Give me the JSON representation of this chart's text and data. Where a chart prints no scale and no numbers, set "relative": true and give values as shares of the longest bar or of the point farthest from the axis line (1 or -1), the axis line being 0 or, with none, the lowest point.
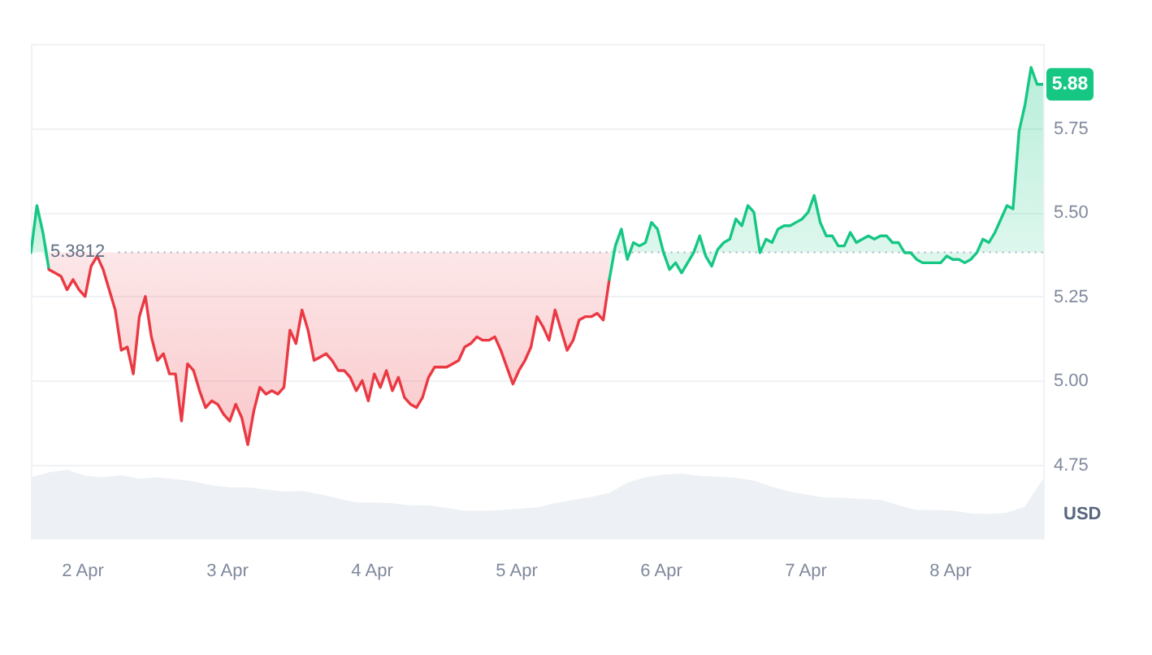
{
  "chart_data": [
    {
      "type": "line",
      "ylabel": "USD",
      "xlim": [
        "--04-01T15:30",
        "--04-08T15:30"
      ],
      "ylim": [
        4.75,
        6
      ],
      "yticks": [
        4.75,
        {
          "value": 5,
          "label": "5.00"
        },
        5.25,
        {
          "value": 5.5,
          "label": "5.50"
        },
        5.75
      ],
      "tick_labels": "y",
      "grid": "y",
      "ref_lines": [
        {
          "axis": "y",
          "value": 5.3812,
          "label": "5.3812",
          "color": "#a6b0c3",
          "line_style": "dotted"
        }
      ],
      "annotations": [
        {
          "text": "5.88",
          "x": "--04-08T15:30",
          "y": 5.88
        }
      ],
      "series": [
        {
          "color": "#16c784",
          "x": [
            "--04-01T15:30",
            "--04-01T16:30",
            "--04-01T17:30",
            "--04-01T18:30"
          ],
          "values": [
            5.38,
            5.52,
            5.44,
            5.33
          ],
          "lower": [
            5.38,
            5.3812,
            5.3812,
            5.33
          ],
          "upper": [
            5.3812,
            5.52,
            5.44,
            5.3812
          ]
        },
        {
          "color": "#ea3943",
          "x": [
            "--04-01T18:30",
            "--04-01T19:30",
            "--04-01T20:30",
            "--04-01T21:30",
            "--04-01T22:30",
            "--04-01T23:30",
            "--04-02T00:30",
            "--04-02T01:30",
            "--04-02T02:30",
            "--04-02T03:30",
            "--04-02T04:30",
            "--04-02T05:30",
            "--04-02T06:30",
            "--04-02T07:30",
            "--04-02T08:30",
            "--04-02T09:30",
            "--04-02T10:30",
            "--04-02T11:30",
            "--04-02T12:30",
            "--04-02T13:30",
            "--04-02T14:30",
            "--04-02T15:30",
            "--04-02T16:30",
            "--04-02T17:30",
            "--04-02T18:30",
            "--04-02T19:30",
            "--04-02T20:30",
            "--04-02T21:30",
            "--04-02T22:30",
            "--04-02T23:30",
            "--04-03T00:30",
            "--04-03T01:30",
            "--04-03T02:30",
            "--04-03T03:30",
            "--04-03T04:30",
            "--04-03T05:30",
            "--04-03T06:30",
            "--04-03T07:30",
            "--04-03T08:30",
            "--04-03T09:30",
            "--04-03T10:30",
            "--04-03T11:30",
            "--04-03T12:30",
            "--04-03T13:30",
            "--04-03T14:30",
            "--04-03T15:30",
            "--04-03T16:30",
            "--04-03T17:30",
            "--04-03T18:30",
            "--04-03T19:30",
            "--04-03T20:30",
            "--04-03T21:30",
            "--04-03T22:30",
            "--04-03T23:30",
            "--04-04T00:30",
            "--04-04T01:30",
            "--04-04T02:30",
            "--04-04T03:30",
            "--04-04T04:30",
            "--04-04T05:30",
            "--04-04T06:30",
            "--04-04T07:30",
            "--04-04T08:30",
            "--04-04T09:30",
            "--04-04T10:30",
            "--04-04T11:30",
            "--04-04T12:30",
            "--04-04T13:30",
            "--04-04T14:30",
            "--04-04T15:30",
            "--04-04T16:30",
            "--04-04T17:30",
            "--04-04T18:30",
            "--04-04T19:30",
            "--04-04T20:30",
            "--04-04T21:30",
            "--04-04T22:30",
            "--04-04T23:30",
            "--04-05T00:30",
            "--04-05T01:30",
            "--04-05T02:30",
            "--04-05T03:30",
            "--04-05T04:30",
            "--04-05T05:30",
            "--04-05T06:30",
            "--04-05T07:30",
            "--04-05T08:30",
            "--04-05T09:30",
            "--04-05T10:30",
            "--04-05T11:30",
            "--04-05T12:30",
            "--04-05T13:30",
            "--04-05T14:30",
            "--04-05T15:30"
          ],
          "values": [
            5.33,
            5.32,
            5.31,
            5.27,
            5.3,
            5.27,
            5.25,
            5.34,
            5.37,
            5.33,
            5.27,
            5.21,
            5.09,
            5.1,
            5.02,
            5.19,
            5.25,
            5.13,
            5.06,
            5.08,
            5.02,
            5.02,
            4.88,
            5.05,
            5.03,
            4.97,
            4.92,
            4.94,
            4.93,
            4.9,
            4.88,
            4.93,
            4.89,
            4.81,
            4.91,
            4.98,
            4.96,
            4.97,
            4.96,
            4.98,
            5.15,
            5.11,
            5.21,
            5.15,
            5.06,
            5.07,
            5.08,
            5.06,
            5.03,
            5.03,
            5.01,
            4.97,
            5.0,
            4.94,
            5.02,
            4.98,
            5.03,
            4.97,
            5.01,
            4.95,
            4.93,
            4.92,
            4.95,
            5.01,
            5.04,
            5.04,
            5.04,
            5.05,
            5.06,
            5.1,
            5.11,
            5.13,
            5.12,
            5.12,
            5.13,
            5.09,
            5.04,
            4.99,
            5.03,
            5.06,
            5.1,
            5.19,
            5.16,
            5.12,
            5.21,
            5.15,
            5.09,
            5.12,
            5.18,
            5.19,
            5.19,
            5.2,
            5.18,
            5.3
          ],
          "lower": [
            5.33,
            5.32,
            5.31,
            5.27,
            5.3,
            5.27,
            5.25,
            5.34,
            5.37,
            5.33,
            5.27,
            5.21,
            5.09,
            5.1,
            5.02,
            5.19,
            5.25,
            5.13,
            5.06,
            5.08,
            5.02,
            5.02,
            4.88,
            5.05,
            5.03,
            4.97,
            4.92,
            4.94,
            4.93,
            4.9,
            4.88,
            4.93,
            4.89,
            4.81,
            4.91,
            4.98,
            4.96,
            4.97,
            4.96,
            4.98,
            5.15,
            5.11,
            5.21,
            5.15,
            5.06,
            5.07,
            5.08,
            5.06,
            5.03,
            5.03,
            5.01,
            4.97,
            5.0,
            4.94,
            5.02,
            4.98,
            5.03,
            4.97,
            5.01,
            4.95,
            4.93,
            4.92,
            4.95,
            5.01,
            5.04,
            5.04,
            5.04,
            5.05,
            5.06,
            5.1,
            5.11,
            5.13,
            5.12,
            5.12,
            5.13,
            5.09,
            5.04,
            4.99,
            5.03,
            5.06,
            5.1,
            5.19,
            5.16,
            5.12,
            5.21,
            5.15,
            5.09,
            5.12,
            5.18,
            5.19,
            5.19,
            5.2,
            5.18,
            5.3
          ],
          "upper": [
            5.3812,
            5.3812,
            5.3812,
            5.3812,
            5.3812,
            5.3812,
            5.3812,
            5.3812,
            5.3812,
            5.3812,
            5.3812,
            5.3812,
            5.3812,
            5.3812,
            5.3812,
            5.3812,
            5.3812,
            5.3812,
            5.3812,
            5.3812,
            5.3812,
            5.3812,
            5.3812,
            5.3812,
            5.3812,
            5.3812,
            5.3812,
            5.3812,
            5.3812,
            5.3812,
            5.3812,
            5.3812,
            5.3812,
            5.3812,
            5.3812,
            5.3812,
            5.3812,
            5.3812,
            5.3812,
            5.3812,
            5.3812,
            5.3812,
            5.3812,
            5.3812,
            5.3812,
            5.3812,
            5.3812,
            5.3812,
            5.3812,
            5.3812,
            5.3812,
            5.3812,
            5.3812,
            5.3812,
            5.3812,
            5.3812,
            5.3812,
            5.3812,
            5.3812,
            5.3812,
            5.3812,
            5.3812,
            5.3812,
            5.3812,
            5.3812,
            5.3812,
            5.3812,
            5.3812,
            5.3812,
            5.3812,
            5.3812,
            5.3812,
            5.3812,
            5.3812,
            5.3812,
            5.3812,
            5.3812,
            5.3812,
            5.3812,
            5.3812,
            5.3812,
            5.3812,
            5.3812,
            5.3812,
            5.3812,
            5.3812,
            5.3812,
            5.3812,
            5.3812,
            5.3812,
            5.3812,
            5.3812,
            5.3812,
            5.3812
          ]
        },
        {
          "color": "#16c784",
          "x": [
            "--04-05T15:30",
            "--04-05T16:30",
            "--04-05T17:30",
            "--04-05T18:30",
            "--04-05T19:30",
            "--04-05T20:30",
            "--04-05T21:30",
            "--04-05T22:30",
            "--04-05T23:30",
            "--04-06T00:30",
            "--04-06T01:30",
            "--04-06T02:30",
            "--04-06T03:30",
            "--04-06T04:30",
            "--04-06T05:30",
            "--04-06T06:30",
            "--04-06T07:30",
            "--04-06T08:30",
            "--04-06T09:30",
            "--04-06T10:30",
            "--04-06T11:30",
            "--04-06T12:30",
            "--04-06T13:30",
            "--04-06T14:30",
            "--04-06T15:30",
            "--04-06T16:30",
            "--04-06T17:30",
            "--04-06T18:30",
            "--04-06T19:30",
            "--04-06T20:30",
            "--04-06T21:30",
            "--04-06T22:30",
            "--04-06T23:30",
            "--04-07T00:30",
            "--04-07T01:30",
            "--04-07T02:30",
            "--04-07T03:30",
            "--04-07T04:30",
            "--04-07T05:30",
            "--04-07T06:30",
            "--04-07T07:30",
            "--04-07T08:30",
            "--04-07T09:30",
            "--04-07T10:30",
            "--04-07T11:30",
            "--04-07T12:30",
            "--04-07T13:30",
            "--04-07T14:30",
            "--04-07T15:30",
            "--04-07T16:30",
            "--04-07T17:30",
            "--04-07T18:30",
            "--04-07T19:30",
            "--04-07T20:30",
            "--04-07T21:30",
            "--04-07T22:30",
            "--04-07T23:30",
            "--04-08T00:30",
            "--04-08T01:30",
            "--04-08T02:30",
            "--04-08T03:30",
            "--04-08T04:30",
            "--04-08T05:30",
            "--04-08T06:30",
            "--04-08T07:30",
            "--04-08T08:30",
            "--04-08T09:30",
            "--04-08T10:30",
            "--04-08T11:30",
            "--04-08T12:30",
            "--04-08T13:30",
            "--04-08T14:30",
            "--04-08T15:30"
          ],
          "values": [
            5.3,
            5.4,
            5.45,
            5.36,
            5.41,
            5.4,
            5.41,
            5.47,
            5.45,
            5.38,
            5.33,
            5.35,
            5.32,
            5.35,
            5.38,
            5.43,
            5.37,
            5.34,
            5.39,
            5.41,
            5.42,
            5.48,
            5.46,
            5.52,
            5.5,
            5.38,
            5.42,
            5.41,
            5.45,
            5.46,
            5.46,
            5.47,
            5.48,
            5.5,
            5.55,
            5.47,
            5.43,
            5.43,
            5.4,
            5.4,
            5.44,
            5.41,
            5.42,
            5.43,
            5.42,
            5.43,
            5.43,
            5.41,
            5.41,
            5.38,
            5.38,
            5.36,
            5.35,
            5.35,
            5.35,
            5.35,
            5.37,
            5.36,
            5.36,
            5.35,
            5.36,
            5.38,
            5.42,
            5.41,
            5.44,
            5.48,
            5.52,
            5.51,
            5.74,
            5.82,
            5.93,
            5.88,
            5.88
          ],
          "lower": [
            5.3,
            5.3812,
            5.3812,
            5.36,
            5.3812,
            5.3812,
            5.3812,
            5.3812,
            5.3812,
            5.38,
            5.33,
            5.35,
            5.32,
            5.35,
            5.38,
            5.3812,
            5.37,
            5.34,
            5.3812,
            5.3812,
            5.3812,
            5.3812,
            5.3812,
            5.3812,
            5.3812,
            5.38,
            5.3812,
            5.3812,
            5.3812,
            5.3812,
            5.3812,
            5.3812,
            5.3812,
            5.3812,
            5.3812,
            5.3812,
            5.3812,
            5.3812,
            5.3812,
            5.3812,
            5.3812,
            5.3812,
            5.3812,
            5.3812,
            5.3812,
            5.3812,
            5.3812,
            5.3812,
            5.3812,
            5.38,
            5.38,
            5.36,
            5.35,
            5.35,
            5.35,
            5.35,
            5.37,
            5.36,
            5.36,
            5.35,
            5.36,
            5.38,
            5.3812,
            5.3812,
            5.3812,
            5.3812,
            5.3812,
            5.3812,
            5.3812,
            5.3812,
            5.3812,
            5.3812,
            5.3812
          ],
          "upper": [
            5.3812,
            5.4,
            5.45,
            5.3812,
            5.41,
            5.4,
            5.41,
            5.47,
            5.45,
            5.3812,
            5.3812,
            5.3812,
            5.3812,
            5.3812,
            5.3812,
            5.43,
            5.3812,
            5.3812,
            5.39,
            5.41,
            5.42,
            5.48,
            5.46,
            5.52,
            5.5,
            5.3812,
            5.42,
            5.41,
            5.45,
            5.46,
            5.46,
            5.47,
            5.48,
            5.5,
            5.55,
            5.47,
            5.43,
            5.43,
            5.4,
            5.4,
            5.44,
            5.41,
            5.42,
            5.43,
            5.42,
            5.43,
            5.43,
            5.41,
            5.41,
            5.3812,
            5.3812,
            5.3812,
            5.3812,
            5.3812,
            5.3812,
            5.3812,
            5.3812,
            5.3812,
            5.3812,
            5.3812,
            5.3812,
            5.3812,
            5.42,
            5.41,
            5.44,
            5.48,
            5.52,
            5.51,
            5.74,
            5.82,
            5.93,
            5.88,
            5.88
          ]
        }
      ]
    },
    {
      "type": "area",
      "relative": true,
      "xlim": [
        "--04-01T15:30",
        "--04-08T15:30"
      ],
      "tick_labels": "x",
      "color": "#edf0f4",
      "xticks": [
        {
          "value": "--04-02",
          "label": "2 Apr"
        },
        {
          "value": "--04-03",
          "label": "3 Apr"
        },
        {
          "value": "--04-04",
          "label": "4 Apr"
        },
        {
          "value": "--04-05",
          "label": "5 Apr"
        },
        {
          "value": "--04-06",
          "label": "6 Apr"
        },
        {
          "value": "--04-07",
          "label": "7 Apr"
        },
        {
          "value": "--04-08",
          "label": "8 Apr"
        }
      ],
      "x": [
        "--04-01T15:30",
        "--04-01T18:30",
        "--04-01T21:30",
        "--04-02T00:30",
        "--04-02T03:30",
        "--04-02T06:30",
        "--04-02T09:30",
        "--04-02T12:30",
        "--04-02T15:30",
        "--04-02T18:30",
        "--04-02T21:30",
        "--04-03T00:30",
        "--04-03T03:30",
        "--04-03T06:30",
        "--04-03T09:30",
        "--04-03T12:30",
        "--04-03T15:30",
        "--04-03T18:30",
        "--04-03T21:30",
        "--04-04T00:30",
        "--04-04T03:30",
        "--04-04T06:30",
        "--04-04T09:30",
        "--04-04T12:30",
        "--04-04T15:30",
        "--04-04T18:30",
        "--04-04T21:30",
        "--04-05T00:30",
        "--04-05T03:30",
        "--04-05T06:30",
        "--04-05T09:30",
        "--04-05T12:30",
        "--04-05T15:30",
        "--04-05T18:30",
        "--04-05T21:30",
        "--04-06T00:30",
        "--04-06T03:30",
        "--04-06T06:30",
        "--04-06T09:30",
        "--04-06T12:30",
        "--04-06T15:30",
        "--04-06T18:30",
        "--04-06T21:30",
        "--04-07T00:30",
        "--04-07T03:30",
        "--04-07T06:30",
        "--04-07T09:30",
        "--04-07T12:30",
        "--04-07T15:30",
        "--04-07T18:30",
        "--04-07T21:30",
        "--04-08T00:30",
        "--04-08T03:30",
        "--04-08T06:30",
        "--04-08T09:30",
        "--04-08T12:30",
        "--04-08T15:30"
      ],
      "values": [
        0.89,
        0.96,
        1.0,
        0.91,
        0.89,
        0.92,
        0.87,
        0.89,
        0.86,
        0.83,
        0.77,
        0.74,
        0.74,
        0.71,
        0.68,
        0.69,
        0.64,
        0.58,
        0.52,
        0.52,
        0.51,
        0.48,
        0.48,
        0.44,
        0.4,
        0.4,
        0.41,
        0.43,
        0.45,
        0.51,
        0.56,
        0.6,
        0.66,
        0.81,
        0.89,
        0.93,
        0.94,
        0.91,
        0.9,
        0.88,
        0.84,
        0.75,
        0.68,
        0.63,
        0.59,
        0.59,
        0.57,
        0.56,
        0.48,
        0.41,
        0.41,
        0.4,
        0.36,
        0.35,
        0.37,
        0.46,
        0.87
      ]
    }
  ]
}
